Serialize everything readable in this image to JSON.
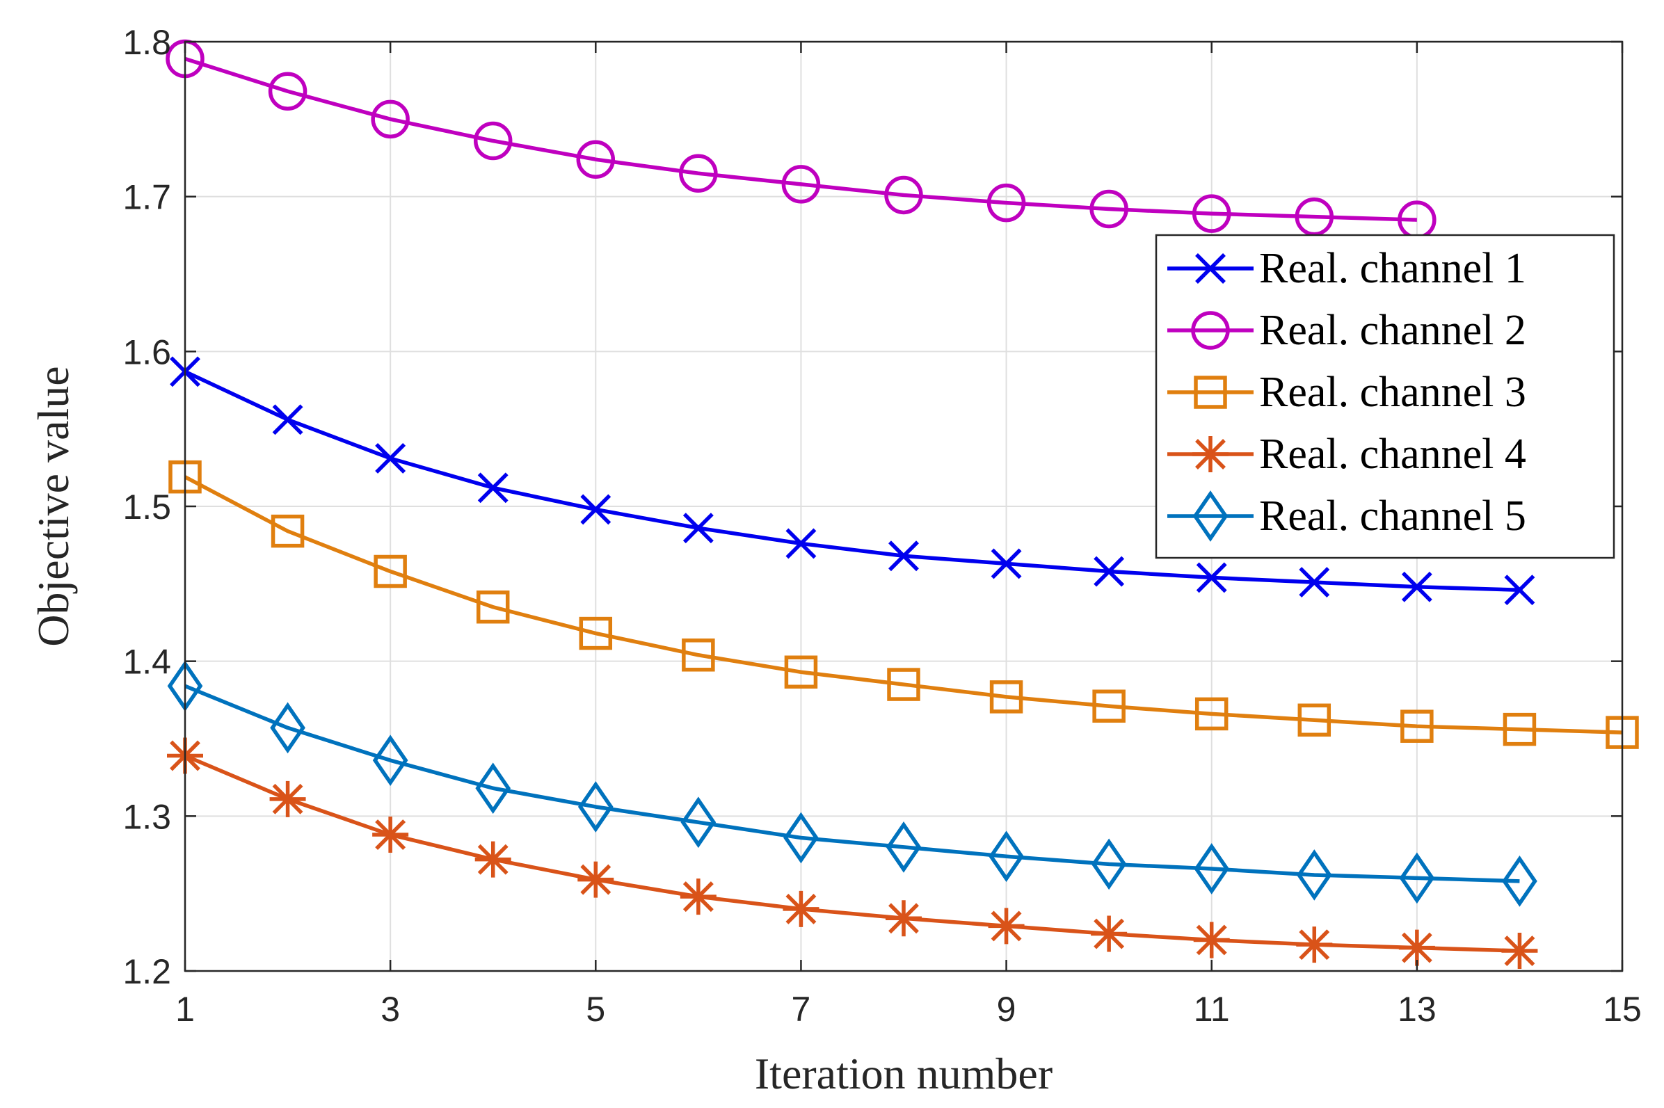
{
  "chart_data": {
    "type": "line",
    "title": "",
    "xlabel": "Iteration number",
    "ylabel": "Objective value",
    "xlim": [
      1,
      15
    ],
    "ylim": [
      1.2,
      1.8
    ],
    "xticks": [
      1,
      3,
      5,
      7,
      9,
      11,
      13,
      15
    ],
    "xtick_labels": [
      "1",
      "3",
      "5",
      "7",
      "9",
      "11",
      "13",
      "15"
    ],
    "yticks": [
      1.2,
      1.3,
      1.4,
      1.5,
      1.6,
      1.7,
      1.8
    ],
    "ytick_labels": [
      "1.2",
      "1.3",
      "1.4",
      "1.5",
      "1.6",
      "1.7",
      "1.8"
    ],
    "grid": true,
    "legend_position": "top-right",
    "series": [
      {
        "name": "Real. channel 1",
        "marker": "x",
        "color": "#0000ee",
        "x": [
          1,
          2,
          3,
          4,
          5,
          6,
          7,
          8,
          9,
          10,
          11,
          12,
          13,
          14
        ],
        "y": [
          1.587,
          1.556,
          1.531,
          1.512,
          1.498,
          1.486,
          1.476,
          1.468,
          1.463,
          1.458,
          1.454,
          1.451,
          1.448,
          1.446
        ]
      },
      {
        "name": "Real. channel 2",
        "marker": "circle",
        "color": "#bf00bf",
        "x": [
          1,
          2,
          3,
          4,
          5,
          6,
          7,
          8,
          9,
          10,
          11,
          12,
          13
        ],
        "y": [
          1.789,
          1.768,
          1.75,
          1.736,
          1.724,
          1.715,
          1.708,
          1.701,
          1.696,
          1.692,
          1.689,
          1.687,
          1.685
        ]
      },
      {
        "name": "Real. channel 3",
        "marker": "square",
        "color": "#e07f0f",
        "x": [
          1,
          2,
          3,
          4,
          5,
          6,
          7,
          8,
          9,
          10,
          11,
          12,
          13,
          14,
          15
        ],
        "y": [
          1.519,
          1.484,
          1.458,
          1.435,
          1.418,
          1.404,
          1.393,
          1.385,
          1.377,
          1.371,
          1.366,
          1.362,
          1.358,
          1.356,
          1.354
        ]
      },
      {
        "name": "Real. channel 4",
        "marker": "asterisk",
        "color": "#d95319",
        "x": [
          1,
          2,
          3,
          4,
          5,
          6,
          7,
          8,
          9,
          10,
          11,
          12,
          13,
          14
        ],
        "y": [
          1.339,
          1.311,
          1.288,
          1.272,
          1.259,
          1.248,
          1.24,
          1.234,
          1.229,
          1.224,
          1.22,
          1.217,
          1.215,
          1.213
        ]
      },
      {
        "name": "Real. channel 5",
        "marker": "diamond",
        "color": "#0072bd",
        "x": [
          1,
          2,
          3,
          4,
          5,
          6,
          7,
          8,
          9,
          10,
          11,
          12,
          13,
          14
        ],
        "y": [
          1.384,
          1.357,
          1.336,
          1.318,
          1.306,
          1.296,
          1.286,
          1.28,
          1.274,
          1.269,
          1.266,
          1.262,
          1.26,
          1.258
        ]
      }
    ]
  }
}
